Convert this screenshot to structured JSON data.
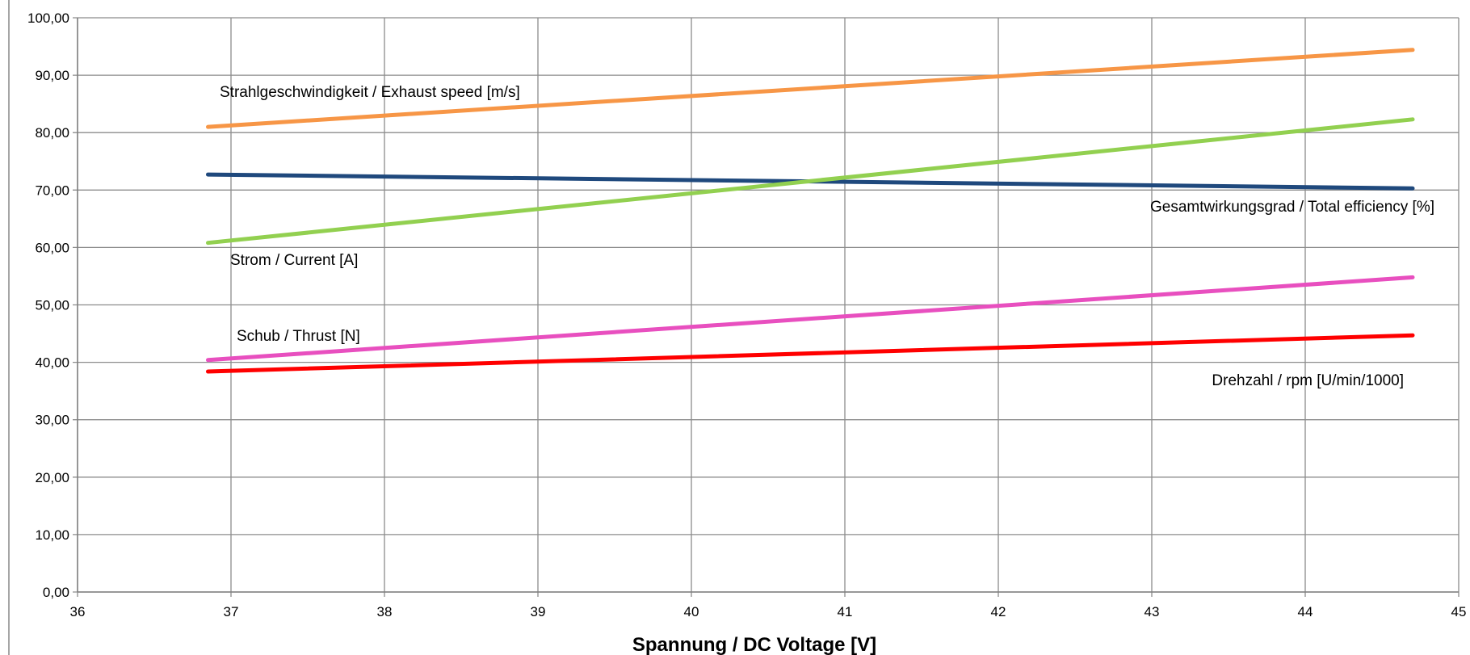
{
  "chart_data": {
    "type": "line",
    "title": "",
    "xlabel": "Spannung / DC Voltage [V]",
    "ylabel": "",
    "xlim": [
      36,
      45
    ],
    "ylim": [
      0,
      100
    ],
    "x_ticks": [
      "36",
      "37",
      "38",
      "39",
      "40",
      "41",
      "42",
      "43",
      "44",
      "45"
    ],
    "y_ticks": [
      "0,00",
      "10,00",
      "20,00",
      "30,00",
      "40,00",
      "50,00",
      "60,00",
      "70,00",
      "80,00",
      "90,00",
      "100,00"
    ],
    "grid": true,
    "legend": "none",
    "x": [
      36.85,
      44.7
    ],
    "series": [
      {
        "name": "Strahlgeschwindigkeit / Exhaust speed [m/s]",
        "color": "#F79646",
        "values": [
          81.0,
          94.4
        ]
      },
      {
        "name": "Gesamtwirkungsgrad / Total efficiency [%]",
        "color": "#1F497D",
        "values": [
          72.7,
          70.3
        ]
      },
      {
        "name": "Strom / Current [A]",
        "color": "#92D050",
        "values": [
          60.8,
          82.3
        ]
      },
      {
        "name": "Schub / Thrust [N]",
        "color": "#E84FBF",
        "values": [
          40.4,
          54.8
        ]
      },
      {
        "name": "Drehzahl / rpm [U/min/1000]",
        "color": "#FF0000",
        "values": [
          38.4,
          44.7
        ]
      }
    ]
  }
}
